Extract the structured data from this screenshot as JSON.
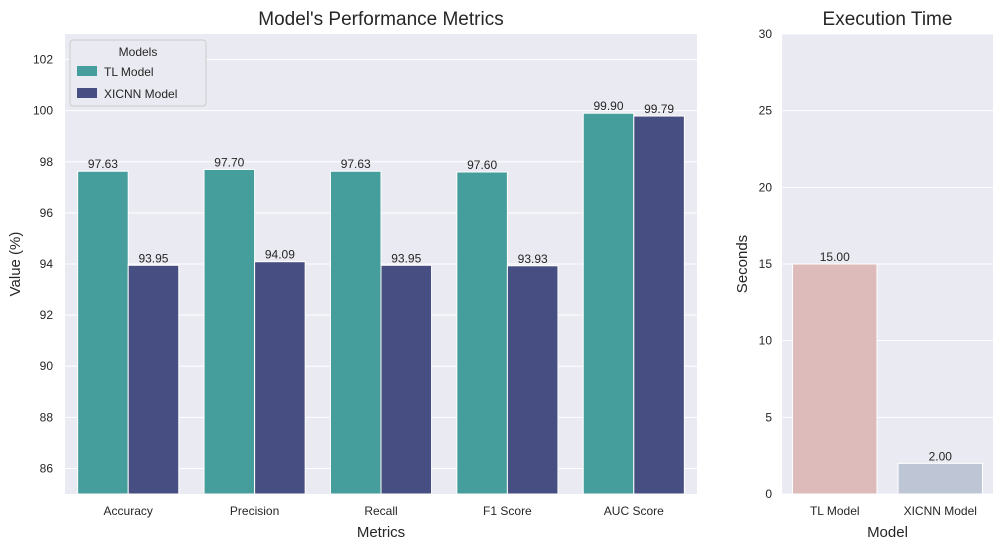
{
  "chart_data": [
    {
      "type": "bar",
      "title": "Model's Performance Metrics",
      "xlabel": "Metrics",
      "ylabel": "Value (%)",
      "categories": [
        "Accuracy",
        "Precision",
        "Recall",
        "F1 Score",
        "AUC Score"
      ],
      "series": [
        {
          "name": "TL Model",
          "values": [
            97.63,
            97.7,
            97.63,
            97.6,
            99.9
          ],
          "color": "#459d9c"
        },
        {
          "name": "XICNN Model",
          "values": [
            93.95,
            94.09,
            93.95,
            93.93,
            99.79
          ],
          "color": "#474f82"
        }
      ],
      "data_labels": [
        [
          "97.63",
          "97.70",
          "97.63",
          "97.60",
          "99.90"
        ],
        [
          "93.95",
          "94.09",
          "93.95",
          "93.93",
          "99.79"
        ]
      ],
      "ylim": [
        85,
        103
      ],
      "yticks": [
        86,
        88,
        90,
        92,
        94,
        96,
        98,
        100,
        102
      ],
      "legend": {
        "title": "Models",
        "position": "top-left"
      },
      "grid": true
    },
    {
      "type": "bar",
      "title": "Execution Time",
      "xlabel": "Model",
      "ylabel": "Seconds",
      "categories": [
        "TL Model",
        "XICNN Model"
      ],
      "values": [
        15.0,
        2.0
      ],
      "data_labels": [
        "15.00",
        "2.00"
      ],
      "colors": [
        "#dcbbba",
        "#bec6d5"
      ],
      "ylim": [
        0,
        30
      ],
      "yticks": [
        0,
        5,
        10,
        15,
        20,
        25,
        30
      ],
      "grid": true
    }
  ]
}
